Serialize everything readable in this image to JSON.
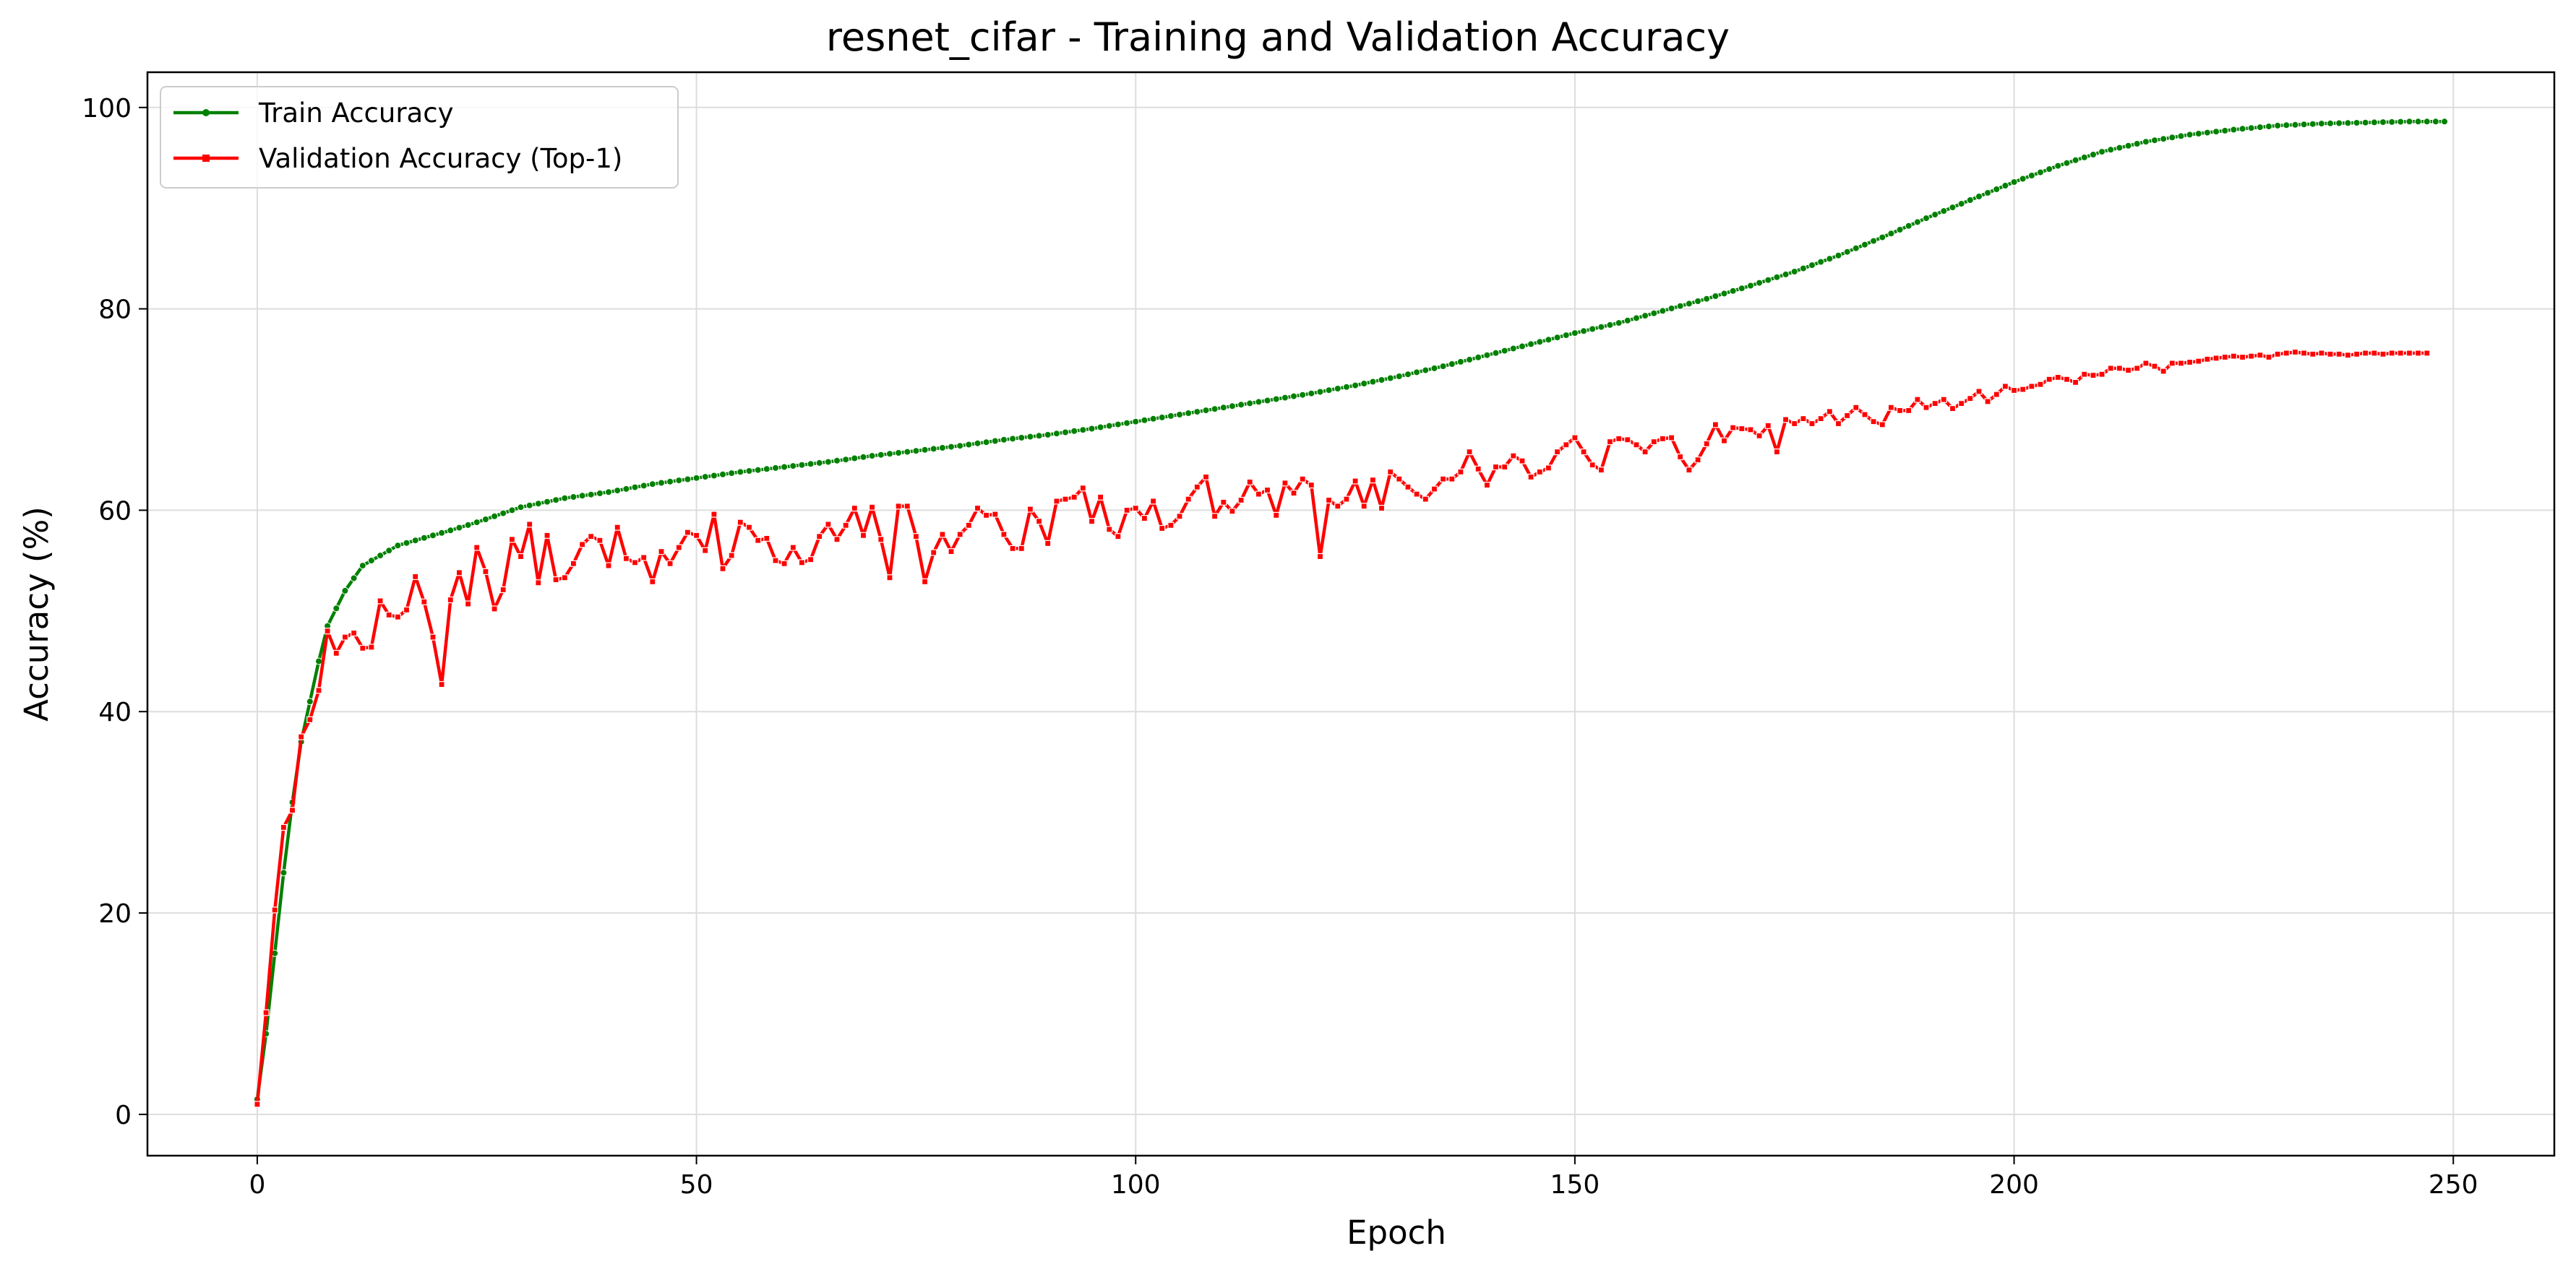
{
  "chart_data": {
    "type": "line",
    "title": "resnet_cifar - Training and Validation Accuracy",
    "xlabel": "Epoch",
    "ylabel": "Accuracy (%)",
    "xlim": [
      -12.5,
      261.5
    ],
    "ylim": [
      -4.1,
      103.5
    ],
    "xticks": [
      0,
      50,
      100,
      150,
      200,
      250
    ],
    "yticks": [
      0,
      20,
      40,
      60,
      80,
      100
    ],
    "xtick_labels": [
      "0",
      "50",
      "100",
      "150",
      "200",
      "250"
    ],
    "ytick_labels": [
      "0",
      "20",
      "40",
      "60",
      "80",
      "100"
    ],
    "grid": true,
    "legend_position": "top-left",
    "series": [
      {
        "name": "Train Accuracy",
        "color": "#008000",
        "marker": "circle",
        "keypoints": [
          [
            0,
            1.5
          ],
          [
            1,
            8
          ],
          [
            2,
            16
          ],
          [
            3,
            24
          ],
          [
            4,
            31
          ],
          [
            5,
            37
          ],
          [
            6,
            41
          ],
          [
            7,
            45
          ],
          [
            8,
            48.5
          ],
          [
            10,
            52
          ],
          [
            12,
            54.5
          ],
          [
            14,
            55.5
          ],
          [
            16,
            56.5
          ],
          [
            18,
            57
          ],
          [
            20,
            57.5
          ],
          [
            22,
            58
          ],
          [
            25,
            58.8
          ],
          [
            30,
            60.3
          ],
          [
            35,
            61.2
          ],
          [
            40,
            61.8
          ],
          [
            45,
            62.6
          ],
          [
            50,
            63.2
          ],
          [
            55,
            63.8
          ],
          [
            60,
            64.3
          ],
          [
            65,
            64.8
          ],
          [
            70,
            65.4
          ],
          [
            75,
            65.9
          ],
          [
            80,
            66.4
          ],
          [
            85,
            67
          ],
          [
            90,
            67.5
          ],
          [
            95,
            68.1
          ],
          [
            100,
            68.8
          ],
          [
            105,
            69.5
          ],
          [
            110,
            70.2
          ],
          [
            115,
            70.9
          ],
          [
            120,
            71.6
          ],
          [
            125,
            72.4
          ],
          [
            130,
            73.3
          ],
          [
            135,
            74.3
          ],
          [
            140,
            75.4
          ],
          [
            145,
            76.5
          ],
          [
            150,
            77.6
          ],
          [
            155,
            78.6
          ],
          [
            160,
            79.8
          ],
          [
            165,
            81
          ],
          [
            170,
            82.3
          ],
          [
            175,
            83.7
          ],
          [
            180,
            85.3
          ],
          [
            185,
            87.1
          ],
          [
            190,
            89
          ],
          [
            195,
            90.8
          ],
          [
            200,
            92.6
          ],
          [
            205,
            94.2
          ],
          [
            210,
            95.6
          ],
          [
            215,
            96.6
          ],
          [
            220,
            97.3
          ],
          [
            225,
            97.8
          ],
          [
            230,
            98.2
          ],
          [
            235,
            98.4
          ],
          [
            240,
            98.5
          ],
          [
            245,
            98.6
          ],
          [
            249,
            98.6
          ]
        ]
      },
      {
        "name": "Validation Accuracy (Top-1)",
        "color": "#ff0000",
        "marker": "square",
        "values": [
          1.0,
          10.1,
          20.3,
          28.5,
          30.2,
          37.5,
          39.2,
          42.1,
          48.0,
          45.8,
          47.4,
          47.8,
          46.3,
          46.4,
          51.0,
          49.6,
          49.4,
          50.1,
          53.4,
          50.9,
          47.4,
          42.7,
          51.1,
          53.8,
          50.7,
          56.3,
          53.9,
          50.2,
          52.1,
          57.1,
          55.4,
          58.6,
          52.8,
          57.5,
          53.1,
          53.3,
          54.7,
          56.6,
          57.4,
          57.0,
          54.5,
          58.3,
          55.2,
          54.8,
          55.3,
          52.9,
          55.9,
          54.7,
          56.3,
          57.8,
          57.5,
          56.0,
          59.6,
          54.2,
          55.5,
          58.8,
          58.3,
          57.0,
          57.2,
          55.0,
          54.7,
          56.3,
          54.8,
          55.1,
          57.4,
          58.6,
          57.1,
          58.5,
          60.2,
          57.5,
          60.3,
          57.1,
          53.3,
          60.4,
          60.4,
          57.4,
          52.9,
          55.8,
          57.6,
          55.9,
          57.6,
          58.5,
          60.2,
          59.5,
          59.6,
          57.6,
          56.2,
          56.2,
          60.1,
          58.9,
          56.7,
          60.9,
          61.1,
          61.3,
          62.2,
          58.9,
          61.3,
          58.1,
          57.4,
          60.0,
          60.2,
          59.2,
          60.9,
          58.2,
          58.5,
          59.4,
          61.1,
          62.3,
          63.3,
          59.4,
          60.8,
          59.9,
          61.0,
          62.8,
          61.6,
          62.0,
          59.5,
          62.7,
          61.7,
          63.1,
          62.5,
          55.4,
          61.0,
          60.4,
          61.1,
          62.9,
          60.4,
          63.0,
          60.2,
          63.8,
          63.1,
          62.3,
          61.6,
          61.1,
          62.1,
          63.1,
          63.1,
          63.8,
          65.8,
          64.1,
          62.5,
          64.3,
          64.3,
          65.4,
          64.9,
          63.3,
          63.8,
          64.2,
          65.8,
          66.5,
          67.2,
          65.8,
          64.5,
          64.0,
          66.8,
          67.1,
          67.0,
          66.5,
          65.8,
          66.8,
          67.1,
          67.2,
          65.3,
          64.0,
          65.0,
          66.6,
          68.5,
          66.9,
          68.2,
          68.1,
          68.0,
          67.4,
          68.4,
          65.8,
          69.0,
          68.6,
          69.1,
          68.6,
          69.1,
          69.8,
          68.6,
          69.4,
          70.2,
          69.5,
          68.8,
          68.5,
          70.2,
          69.9,
          69.9,
          71.0,
          70.2,
          70.6,
          71.0,
          70.1,
          70.6,
          71.1,
          71.8,
          70.8,
          71.5,
          72.3,
          71.9,
          72.0,
          72.3,
          72.5,
          73.0,
          73.2,
          73.0,
          72.7,
          73.5,
          73.4,
          73.5,
          74.1,
          74.1,
          73.9,
          74.1,
          74.6,
          74.3,
          73.8,
          74.6,
          74.6,
          74.7,
          74.8,
          75.0,
          75.1,
          75.2,
          75.3,
          75.2,
          75.3,
          75.4,
          75.2,
          75.5,
          75.6,
          75.7,
          75.6,
          75.5,
          75.6,
          75.5,
          75.5,
          75.4,
          75.5,
          75.6,
          75.6,
          75.5,
          75.6,
          75.6,
          75.6,
          75.6,
          75.6
        ]
      }
    ]
  }
}
